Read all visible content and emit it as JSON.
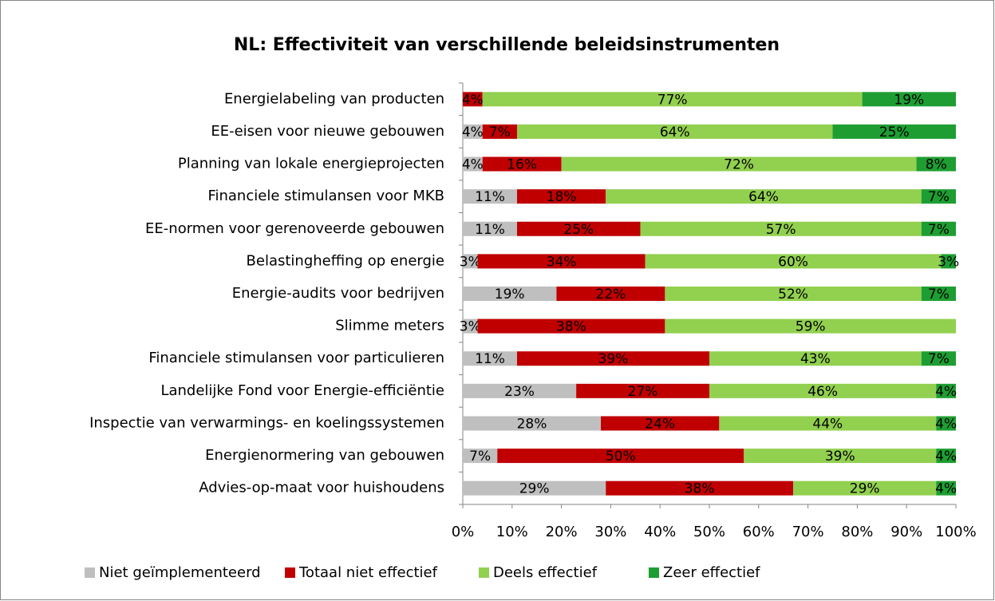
{
  "chart_data": {
    "type": "stacked-bar-horizontal",
    "title": "NL: Effectiviteit van verschillende beleidsinstrumenten",
    "categories": [
      "Energielabeling van producten",
      "EE-eisen voor nieuwe gebouwen",
      "Planning van lokale energieprojecten",
      "Financiele stimulansen voor MKB",
      "EE-normen voor gerenoveerde gebouwen",
      "Belastingheffing op energie",
      "Energie-audits voor bedrijven",
      "Slimme meters",
      "Financiele stimulansen voor particulieren",
      "Landelijke Fond voor Energie-efficiëntie",
      "Inspectie van verwarmings- en koelingssystemen",
      "Energienormering van gebouwen",
      "Advies-op-maat voor huishoudens"
    ],
    "series": [
      {
        "name": "Niet geïmplementeerd",
        "color": "#bfbfbf",
        "values": [
          0,
          4,
          4,
          11,
          11,
          3,
          19,
          3,
          11,
          23,
          28,
          7,
          29
        ],
        "value_labels": [
          null,
          "4%",
          "4%",
          "11%",
          "11%",
          "3%",
          "19%",
          "3%",
          "11%",
          "23%",
          "28%",
          "7%",
          "29%"
        ]
      },
      {
        "name": "Totaal niet effectief",
        "color": "#c00000",
        "values": [
          4,
          7,
          16,
          18,
          25,
          34,
          22,
          38,
          39,
          27,
          24,
          50,
          38
        ],
        "value_labels": [
          "4%",
          "7%",
          "16%",
          "18%",
          "25%",
          "34%",
          "22%",
          "38%",
          "39%",
          "27%",
          "24%",
          "50%",
          "38%"
        ]
      },
      {
        "name": "Deels effectief",
        "color": "#92d050",
        "values": [
          77,
          64,
          72,
          64,
          57,
          60,
          52,
          59,
          43,
          46,
          44,
          39,
          29
        ],
        "value_labels": [
          "77%",
          "64%",
          "72%",
          "64%",
          "57%",
          "60%",
          "52%",
          "59%",
          "43%",
          "46%",
          "44%",
          "39%",
          "29%"
        ]
      },
      {
        "name": "Zeer effectief",
        "color": "#1e9e32",
        "values": [
          19,
          25,
          8,
          7,
          7,
          3,
          7,
          0,
          7,
          4,
          4,
          4,
          4
        ],
        "value_labels": [
          "19%",
          "25%",
          "8%",
          "7%",
          "7%",
          "3%",
          "7%",
          null,
          "7%",
          "4%",
          "4%",
          "4%",
          "4%"
        ]
      }
    ],
    "xlim": [
      0,
      100
    ],
    "xticks": [
      {
        "value": 0,
        "label": "0%"
      },
      {
        "value": 10,
        "label": "10%"
      },
      {
        "value": 20,
        "label": "20%"
      },
      {
        "value": 30,
        "label": "30%"
      },
      {
        "value": 40,
        "label": "40%"
      },
      {
        "value": 50,
        "label": "50%"
      },
      {
        "value": 60,
        "label": "60%"
      },
      {
        "value": 70,
        "label": "70%"
      },
      {
        "value": 80,
        "label": "80%"
      },
      {
        "value": 90,
        "label": "90%"
      },
      {
        "value": 100,
        "label": "100%"
      }
    ],
    "legend": "bottom"
  }
}
